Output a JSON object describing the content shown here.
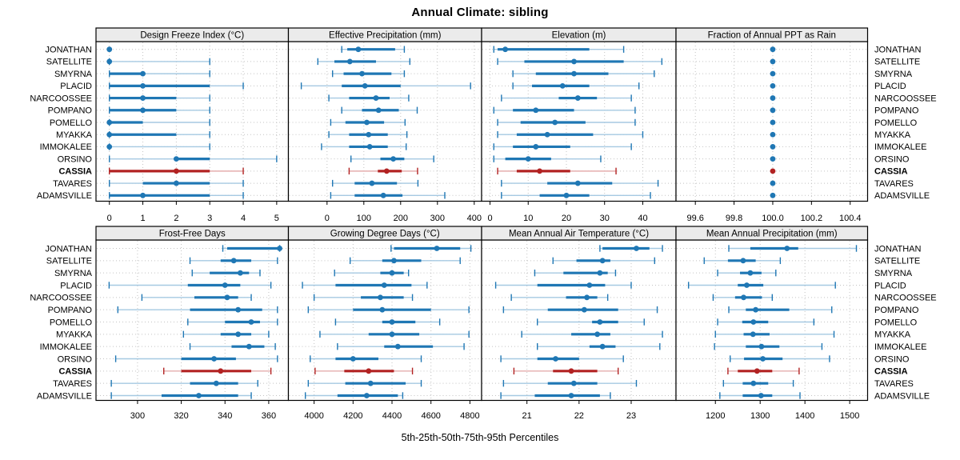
{
  "title": "Annual Climate: sibling",
  "caption": "5th-25th-50th-75th-95th Percentiles",
  "highlight": "CASSIA",
  "colors": {
    "blue": "#1f77b4",
    "blue_light": "#a6c9e2",
    "red": "#b22222",
    "red_light": "#e5aeae",
    "strip_bg": "#ebebeb",
    "grid": "#c3c3c3",
    "border": "#000000",
    "background": "#ffffff"
  },
  "chart_data": {
    "type": "percentile-dotplot-trellis",
    "layout": {
      "rows": 2,
      "cols": 4
    },
    "percentile_labels": [
      "5th",
      "25th",
      "50th",
      "75th",
      "95th"
    ],
    "categories": [
      "JONATHAN",
      "SATELLITE",
      "SMYRNA",
      "PLACID",
      "NARCOOSSEE",
      "POMPANO",
      "POMELLO",
      "MYAKKA",
      "IMMOKALEE",
      "ORSINO",
      "CASSIA",
      "TAVARES",
      "ADAMSVILLE"
    ],
    "panels": [
      {
        "title": "Design Freeze Index (°C)",
        "ticks": [
          0,
          1,
          2,
          3,
          4,
          5
        ],
        "tick_labels": [
          "0",
          "1",
          "2",
          "3",
          "4",
          "5"
        ],
        "xlim": [
          -0.4,
          5.35
        ],
        "values": [
          [
            0,
            0,
            0,
            0,
            0
          ],
          [
            0,
            0,
            0,
            0,
            3
          ],
          [
            0,
            0,
            1,
            1,
            3
          ],
          [
            0,
            0,
            1,
            3,
            4
          ],
          [
            0,
            0,
            1,
            2,
            3
          ],
          [
            0,
            0,
            1,
            2,
            3
          ],
          [
            0,
            0,
            0,
            1,
            3
          ],
          [
            0,
            0,
            0,
            2,
            3
          ],
          [
            0,
            0,
            0,
            0,
            3
          ],
          [
            0,
            2,
            2,
            3,
            5
          ],
          [
            0,
            0,
            2,
            3,
            4
          ],
          [
            0,
            1,
            2,
            3,
            4
          ],
          [
            0,
            0,
            1,
            3,
            4
          ]
        ]
      },
      {
        "title": "Effective Precipitation (mm)",
        "ticks": [
          0,
          100,
          200,
          300,
          400
        ],
        "tick_labels": [
          "0",
          "100",
          "200",
          "300",
          "400"
        ],
        "xlim": [
          -105,
          420
        ],
        "values": [
          [
            40,
            55,
            85,
            185,
            210
          ],
          [
            -25,
            20,
            62,
            133,
            225
          ],
          [
            15,
            45,
            95,
            175,
            210
          ],
          [
            -70,
            40,
            103,
            200,
            390
          ],
          [
            5,
            60,
            133,
            170,
            222
          ],
          [
            40,
            95,
            140,
            195,
            245
          ],
          [
            10,
            50,
            108,
            155,
            212
          ],
          [
            5,
            60,
            113,
            165,
            217
          ],
          [
            -15,
            60,
            116,
            165,
            215
          ],
          [
            65,
            145,
            180,
            210,
            290
          ],
          [
            60,
            138,
            162,
            203,
            246
          ],
          [
            15,
            75,
            122,
            190,
            247
          ],
          [
            10,
            75,
            153,
            205,
            320
          ]
        ]
      },
      {
        "title": "Elevation (m)",
        "ticks": [
          0,
          10,
          20,
          30,
          40
        ],
        "tick_labels": [
          "0",
          "10",
          "20",
          "30",
          "40"
        ],
        "xlim": [
          -2.2,
          48.7
        ],
        "values": [
          [
            1,
            2,
            4,
            26,
            35
          ],
          [
            2,
            9,
            22,
            35,
            45
          ],
          [
            6,
            12,
            22,
            31,
            43
          ],
          [
            6,
            11,
            19,
            26,
            39
          ],
          [
            3,
            18,
            23,
            28,
            37
          ],
          [
            1,
            6,
            12,
            22,
            38
          ],
          [
            2,
            8,
            17,
            25,
            38
          ],
          [
            2,
            7,
            15,
            27,
            40
          ],
          [
            1,
            6,
            12,
            21,
            37
          ],
          [
            1,
            4,
            10,
            16,
            29
          ],
          [
            2,
            7,
            13,
            21,
            33
          ],
          [
            3,
            15,
            23,
            32,
            44
          ],
          [
            3,
            13,
            20,
            26,
            42
          ]
        ]
      },
      {
        "title": "Fraction of Annual PPT as Rain",
        "ticks": [
          99.6,
          99.8,
          100.0,
          100.2,
          100.4
        ],
        "tick_labels": [
          "99.6",
          "99.8",
          "100.0",
          "100.2",
          "100.4"
        ],
        "xlim": [
          99.5,
          100.49
        ],
        "values": [
          [
            100,
            100,
            100,
            100,
            100
          ],
          [
            100,
            100,
            100,
            100,
            100
          ],
          [
            100,
            100,
            100,
            100,
            100
          ],
          [
            100,
            100,
            100,
            100,
            100
          ],
          [
            100,
            100,
            100,
            100,
            100
          ],
          [
            100,
            100,
            100,
            100,
            100
          ],
          [
            100,
            100,
            100,
            100,
            100
          ],
          [
            100,
            100,
            100,
            100,
            100
          ],
          [
            100,
            100,
            100,
            100,
            100
          ],
          [
            100,
            100,
            100,
            100,
            100
          ],
          [
            100,
            100,
            100,
            100,
            100
          ],
          [
            100,
            100,
            100,
            100,
            100
          ],
          [
            100,
            100,
            100,
            100,
            100
          ]
        ]
      },
      {
        "title": "Frost-Free Days",
        "ticks": [
          300,
          320,
          340,
          360
        ],
        "tick_labels": [
          "300",
          "320",
          "340",
          "360"
        ],
        "xlim": [
          281,
          369
        ],
        "values": [
          [
            339,
            341,
            365,
            365,
            365
          ],
          [
            324,
            338,
            344,
            352,
            364
          ],
          [
            325,
            333,
            347,
            351,
            356
          ],
          [
            287,
            323,
            340,
            347,
            361
          ],
          [
            302,
            326,
            341,
            346,
            352
          ],
          [
            291,
            324,
            346,
            357,
            364
          ],
          [
            323,
            340,
            352,
            356,
            364
          ],
          [
            321,
            338,
            346,
            352,
            360
          ],
          [
            324,
            343,
            351,
            358,
            363
          ],
          [
            290,
            320,
            335,
            345,
            364
          ],
          [
            312,
            320,
            338,
            352,
            361
          ],
          [
            288,
            324,
            336,
            346,
            355
          ],
          [
            288,
            311,
            328,
            346,
            352
          ]
        ]
      },
      {
        "title": "Growing Degree Days (°C)",
        "ticks": [
          4000,
          4200,
          4400,
          4600,
          4800
        ],
        "tick_labels": [
          "4000",
          "4200",
          "4400",
          "4600",
          "4800"
        ],
        "xlim": [
          3868,
          4860
        ],
        "values": [
          [
            4395,
            4410,
            4630,
            4750,
            4805
          ],
          [
            4185,
            4350,
            4410,
            4550,
            4750
          ],
          [
            4105,
            4340,
            4400,
            4460,
            4485
          ],
          [
            3940,
            4110,
            4360,
            4500,
            4580
          ],
          [
            4000,
            4240,
            4340,
            4460,
            4505
          ],
          [
            3970,
            4200,
            4350,
            4600,
            4795
          ],
          [
            4110,
            4350,
            4400,
            4520,
            4645
          ],
          [
            4030,
            4280,
            4400,
            4540,
            4795
          ],
          [
            4120,
            4360,
            4430,
            4610,
            4770
          ],
          [
            3980,
            4110,
            4200,
            4330,
            4550
          ],
          [
            4005,
            4155,
            4280,
            4410,
            4505
          ],
          [
            3970,
            4160,
            4290,
            4470,
            4550
          ],
          [
            3955,
            4120,
            4270,
            4430,
            4455
          ]
        ]
      },
      {
        "title": "Mean Annual Air Temperature (°C)",
        "ticks": [
          21,
          22,
          23
        ],
        "tick_labels": [
          "21",
          "22",
          "23"
        ],
        "xlim": [
          20.13,
          23.86
        ],
        "values": [
          [
            22.4,
            22.45,
            23.1,
            23.35,
            23.6
          ],
          [
            21.5,
            21.95,
            22.45,
            22.6,
            23.45
          ],
          [
            21.15,
            21.7,
            22.4,
            22.55,
            22.7
          ],
          [
            20.4,
            21.2,
            22.2,
            22.5,
            23.0
          ],
          [
            20.7,
            21.75,
            22.15,
            22.35,
            22.55
          ],
          [
            20.55,
            21.4,
            22.1,
            22.75,
            23.5
          ],
          [
            21.2,
            22.25,
            22.4,
            22.75,
            23.25
          ],
          [
            20.9,
            21.85,
            22.35,
            22.6,
            23.6
          ],
          [
            21.2,
            22.2,
            22.45,
            22.7,
            23.55
          ],
          [
            20.5,
            21.2,
            21.55,
            22.0,
            22.85
          ],
          [
            20.75,
            21.5,
            21.85,
            22.35,
            22.75
          ],
          [
            20.55,
            21.4,
            21.9,
            22.35,
            23.1
          ],
          [
            20.5,
            21.15,
            21.85,
            22.4,
            22.6
          ]
        ]
      },
      {
        "title": "Mean Annual Precipitation (mm)",
        "ticks": [
          1200,
          1300,
          1400,
          1500
        ],
        "tick_labels": [
          "1200",
          "1300",
          "1400",
          "1500"
        ],
        "xlim": [
          1112,
          1540
        ],
        "values": [
          [
            1230,
            1278,
            1360,
            1385,
            1515
          ],
          [
            1175,
            1228,
            1262,
            1290,
            1345
          ],
          [
            1205,
            1255,
            1278,
            1303,
            1335
          ],
          [
            1140,
            1250,
            1270,
            1307,
            1468
          ],
          [
            1195,
            1244,
            1263,
            1304,
            1327
          ],
          [
            1230,
            1268,
            1290,
            1365,
            1460
          ],
          [
            1205,
            1260,
            1285,
            1318,
            1420
          ],
          [
            1200,
            1263,
            1284,
            1321,
            1465
          ],
          [
            1198,
            1268,
            1303,
            1343,
            1438
          ],
          [
            1233,
            1264,
            1306,
            1350,
            1455
          ],
          [
            1228,
            1250,
            1293,
            1327,
            1387
          ],
          [
            1218,
            1261,
            1285,
            1318,
            1374
          ],
          [
            1210,
            1261,
            1302,
            1327,
            1389
          ]
        ]
      }
    ]
  }
}
